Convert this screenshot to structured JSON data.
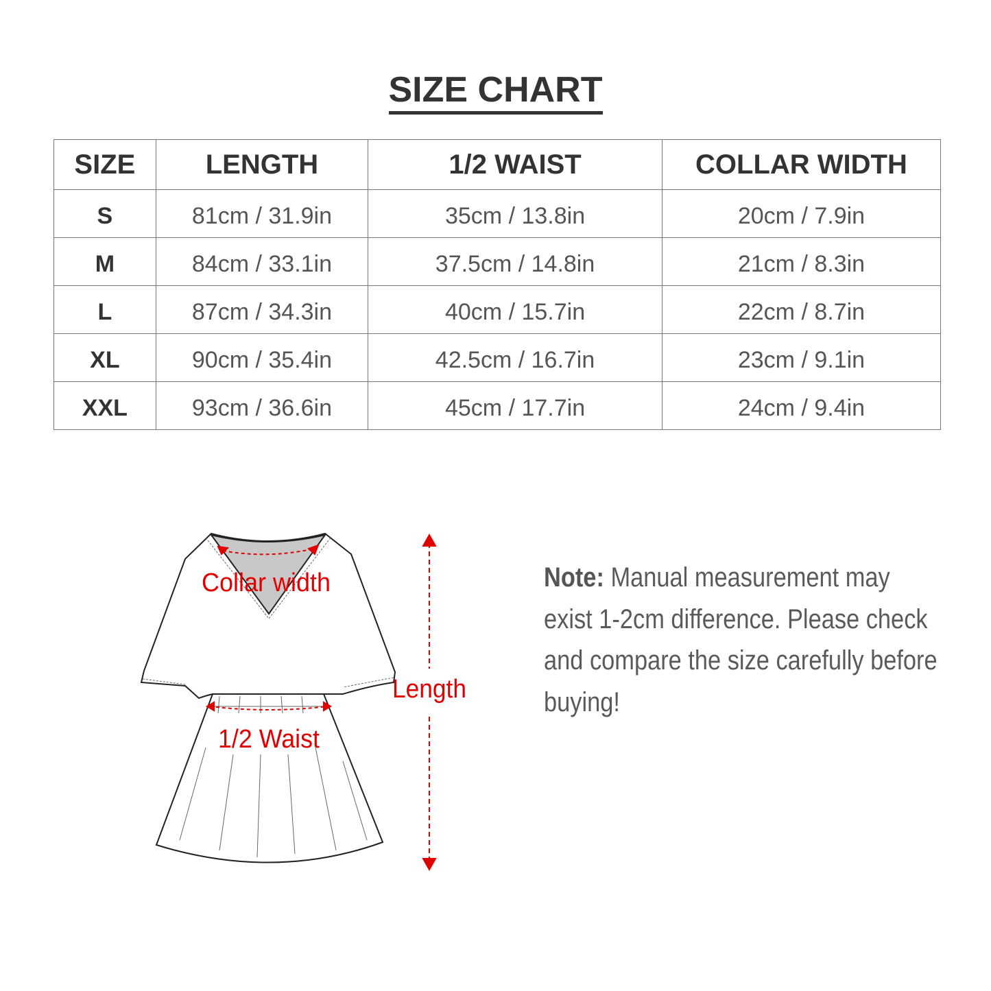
{
  "title": "SIZE CHART",
  "table": {
    "headers": [
      "SIZE",
      "LENGTH",
      "1/2 WAIST",
      "COLLAR WIDTH"
    ],
    "rows": [
      [
        "S",
        "81cm / 31.9in",
        "35cm / 13.8in",
        "20cm / 7.9in"
      ],
      [
        "M",
        "84cm / 33.1in",
        "37.5cm / 14.8in",
        "21cm / 8.3in"
      ],
      [
        "L",
        "87cm / 34.3in",
        "40cm / 15.7in",
        "22cm / 8.7in"
      ],
      [
        "XL",
        "90cm / 35.4in",
        "42.5cm / 16.7in",
        "23cm / 9.1in"
      ],
      [
        "XXL",
        "93cm / 36.6in",
        "45cm / 17.7in",
        "24cm / 9.4in"
      ]
    ]
  },
  "diagram": {
    "collar_label": "Collar width",
    "waist_label": "1/2 Waist",
    "length_label": "Length",
    "accent_color": "#e00000"
  },
  "note": {
    "label": "Note:",
    "text": "Manual measurement may exist 1-2cm difference. Please check and compare the size carefully before buying!"
  }
}
